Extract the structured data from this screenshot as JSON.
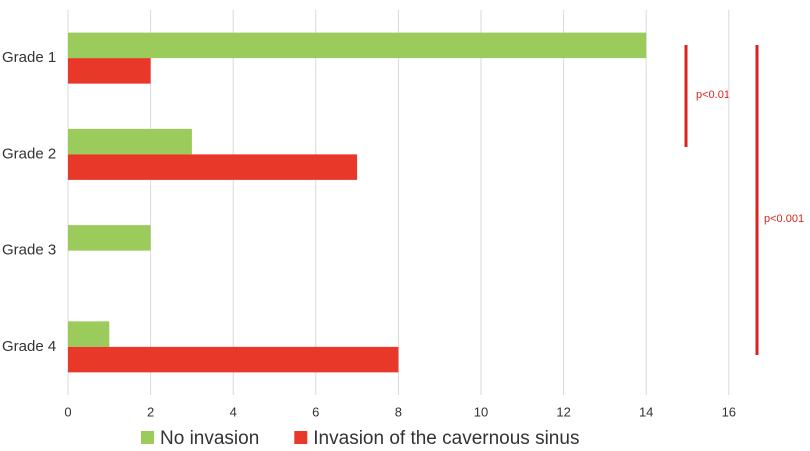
{
  "chart_data": {
    "type": "hbar",
    "categories": [
      "Grade 1",
      "Grade 2",
      "Grade 3",
      "Grade 4"
    ],
    "series": [
      {
        "name": "No invasion",
        "color": "#9bcb5b",
        "values": [
          14,
          3,
          2,
          1
        ]
      },
      {
        "name": "Invasion of the cavernous sinus",
        "color": "#e8382a",
        "values": [
          2,
          7,
          0,
          8
        ]
      }
    ],
    "xlim": [
      0,
      18
    ],
    "xticks": [
      0,
      2,
      4,
      6,
      8,
      10,
      12,
      14,
      16
    ],
    "grid": true,
    "annotations": [
      "p<0.01",
      "p<0.001"
    ]
  }
}
